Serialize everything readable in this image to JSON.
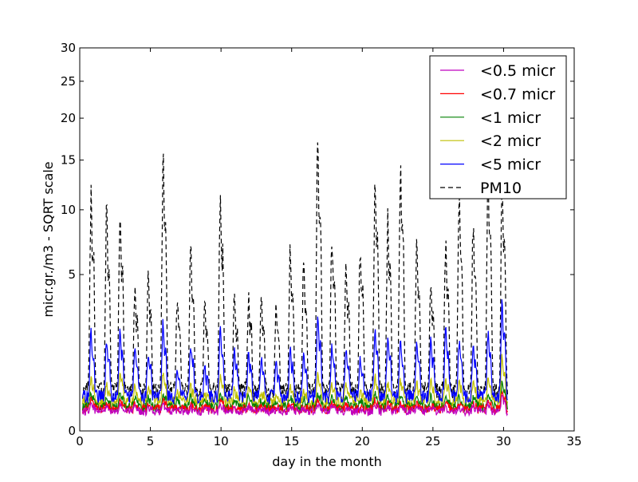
{
  "chart_data": {
    "type": "line",
    "xlabel": "day in the month",
    "ylabel": "micr.gr./m3 - SQRT scale",
    "xlim": [
      0,
      35
    ],
    "ylim": [
      0,
      30
    ],
    "y_scale": "sqrt",
    "x_ticks": [
      "0",
      "5",
      "10",
      "15",
      "20",
      "25",
      "30",
      "35"
    ],
    "y_ticks": [
      "0",
      "5",
      "10",
      "15",
      "20",
      "25",
      "30"
    ],
    "grid": false,
    "legend_position": "top-right",
    "peak_days": [
      0.8,
      1.9,
      2.85,
      3.9,
      4.85,
      5.9,
      6.9,
      7.85,
      8.85,
      9.95,
      10.95,
      11.95,
      12.85,
      13.9,
      14.9,
      15.85,
      16.85,
      17.85,
      18.85,
      19.85,
      20.9,
      21.8,
      22.7,
      23.85,
      24.85,
      25.9,
      26.85,
      27.85,
      28.9,
      29.9
    ],
    "series": [
      {
        "name": "<0.5 micr",
        "color": "#bf00bf",
        "style": "solid",
        "baseline": 0.08,
        "peaks": [
          0.15,
          0.12,
          0.15,
          0.12,
          0.12,
          0.15,
          0.1,
          0.12,
          0.1,
          0.15,
          0.1,
          0.12,
          0.1,
          0.1,
          0.12,
          0.1,
          0.15,
          0.12,
          0.12,
          0.1,
          0.15,
          0.12,
          0.12,
          0.12,
          0.12,
          0.12,
          0.12,
          0.12,
          0.15,
          0.25
        ]
      },
      {
        "name": "<0.7 micr",
        "color": "#ff0000",
        "style": "solid",
        "baseline": 0.1,
        "peaks": [
          0.2,
          0.15,
          0.2,
          0.15,
          0.15,
          0.2,
          0.12,
          0.15,
          0.12,
          0.2,
          0.12,
          0.15,
          0.12,
          0.12,
          0.15,
          0.12,
          0.2,
          0.15,
          0.15,
          0.12,
          0.2,
          0.15,
          0.15,
          0.15,
          0.15,
          0.15,
          0.15,
          0.15,
          0.2,
          0.35
        ]
      },
      {
        "name": "<1 micr",
        "color": "#008000",
        "style": "solid",
        "baseline": 0.12,
        "peaks": [
          0.3,
          0.25,
          0.3,
          0.25,
          0.25,
          0.3,
          0.2,
          0.25,
          0.2,
          0.3,
          0.2,
          0.25,
          0.2,
          0.2,
          0.25,
          0.2,
          0.3,
          0.25,
          0.25,
          0.2,
          0.3,
          0.25,
          0.25,
          0.25,
          0.25,
          0.25,
          0.25,
          0.25,
          0.3,
          0.5
        ]
      },
      {
        "name": "<2 micr",
        "color": "#bfbf00",
        "style": "solid",
        "baseline": 0.18,
        "peaks": [
          0.6,
          0.45,
          0.7,
          0.4,
          0.4,
          0.7,
          0.3,
          0.4,
          0.3,
          0.6,
          0.35,
          0.4,
          0.3,
          0.3,
          0.45,
          0.35,
          0.7,
          0.45,
          0.45,
          0.35,
          0.6,
          0.5,
          0.5,
          0.5,
          0.5,
          0.5,
          0.5,
          0.5,
          0.6,
          1.1
        ]
      },
      {
        "name": "<5 micr",
        "color": "#0000ff",
        "style": "solid",
        "baseline": 0.25,
        "peaks": [
          2.0,
          1.7,
          2.0,
          1.4,
          1.3,
          2.3,
          0.7,
          1.6,
          0.8,
          2.0,
          1.3,
          1.3,
          1.0,
          1.0,
          1.3,
          1.2,
          2.7,
          1.5,
          1.4,
          1.0,
          2.0,
          1.8,
          1.6,
          1.5,
          1.6,
          2.2,
          1.7,
          1.5,
          2.0,
          3.3
        ]
      },
      {
        "name": "PM10",
        "color": "#000000",
        "style": "dashed",
        "baseline": 0.35,
        "peaks": [
          11.3,
          9.6,
          9.9,
          4.2,
          4.7,
          14.9,
          3.7,
          7.2,
          3.4,
          10.9,
          3.6,
          3.8,
          3.6,
          3.3,
          7.1,
          5.7,
          18.2,
          7.6,
          5.9,
          6.8,
          13.0,
          8.9,
          14.8,
          6.8,
          4.5,
          7.0,
          11.4,
          8.9,
          14.0,
          12.5
        ]
      }
    ]
  }
}
